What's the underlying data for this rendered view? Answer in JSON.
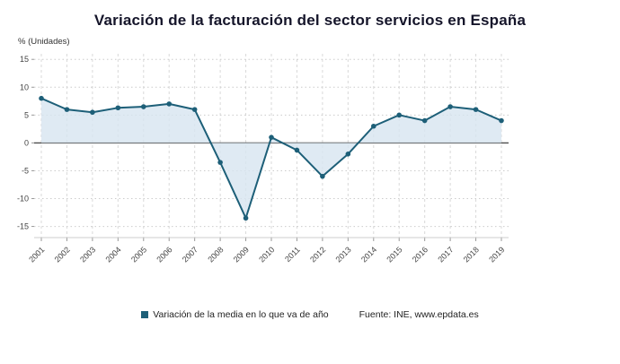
{
  "title": "Variación de la facturación del sector servicios en España",
  "y_axis_label": "% (Unidades)",
  "legend": {
    "label": "Variación de la media en lo que va de año"
  },
  "source": "Fuente: INE, www.epdata.es",
  "colors": {
    "line": "#1d5f78",
    "area": "#d7e5f0",
    "zero_line": "#4d4d4d",
    "grid_h": "#cccccc",
    "grid_v": "#d9d9d9",
    "tick": "#999999",
    "tick_label": "#444444",
    "title": "#15152a"
  },
  "chart_data": {
    "type": "line",
    "x": [
      "2001",
      "2002",
      "2003",
      "2004",
      "2005",
      "2006",
      "2007",
      "2008",
      "2009",
      "2010",
      "2011",
      "2012",
      "2013",
      "2014",
      "2015",
      "2016",
      "2017",
      "2018",
      "2019"
    ],
    "series": [
      {
        "name": "Variación de la media en lo que va de año",
        "values": [
          8,
          6,
          5.5,
          6.3,
          6.5,
          7,
          6,
          -3.5,
          -13.5,
          1,
          -1.3,
          -6,
          -2,
          3,
          5,
          4,
          6.5,
          6,
          4
        ]
      }
    ],
    "title": "Variación de la facturación del sector servicios en España",
    "xlabel": "",
    "ylabel": "% (Unidades)",
    "ylim": [
      -15,
      15
    ],
    "yticks": [
      15,
      10,
      5,
      0,
      -5,
      -10,
      -15
    ],
    "grid": true,
    "legend_position": "bottom",
    "area_fill_to_zero": true
  }
}
